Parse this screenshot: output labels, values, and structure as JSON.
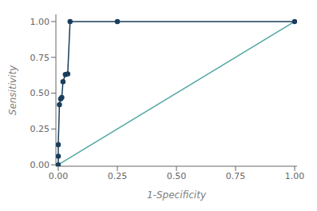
{
  "chart_data": {
    "type": "line",
    "xlabel": "1-Specificity",
    "ylabel": "Sensitivity",
    "series": [
      {
        "x": [
          0.0,
          1.0
        ],
        "values": [
          0.0,
          1.0
        ],
        "color": "#4fa8a0"
      },
      {
        "x": [
          0.0,
          0.0,
          0.0,
          0.005,
          0.01,
          0.015,
          0.02,
          0.03,
          0.04,
          0.05,
          0.25,
          1.0
        ],
        "values": [
          0.0,
          0.06,
          0.14,
          0.42,
          0.46,
          0.47,
          0.58,
          0.63,
          0.635,
          1.0,
          1.0,
          1.0
        ],
        "color": "#1a3e5c",
        "marker": "circle"
      }
    ],
    "xlim": [
      -0.01,
      1.01
    ],
    "ylim": [
      -0.01,
      1.05
    ],
    "xticks": [
      {
        "value": 0,
        "label": "0.00"
      },
      0.25,
      {
        "value": 0.5,
        "label": "0.50"
      },
      0.75,
      {
        "value": 1,
        "label": "1.00"
      }
    ],
    "yticks": [
      {
        "value": 0,
        "label": "0.00"
      },
      0.25,
      {
        "value": 0.5,
        "label": "0.50"
      },
      0.75,
      {
        "value": 1,
        "label": "1.00"
      }
    ],
    "grid": false
  }
}
